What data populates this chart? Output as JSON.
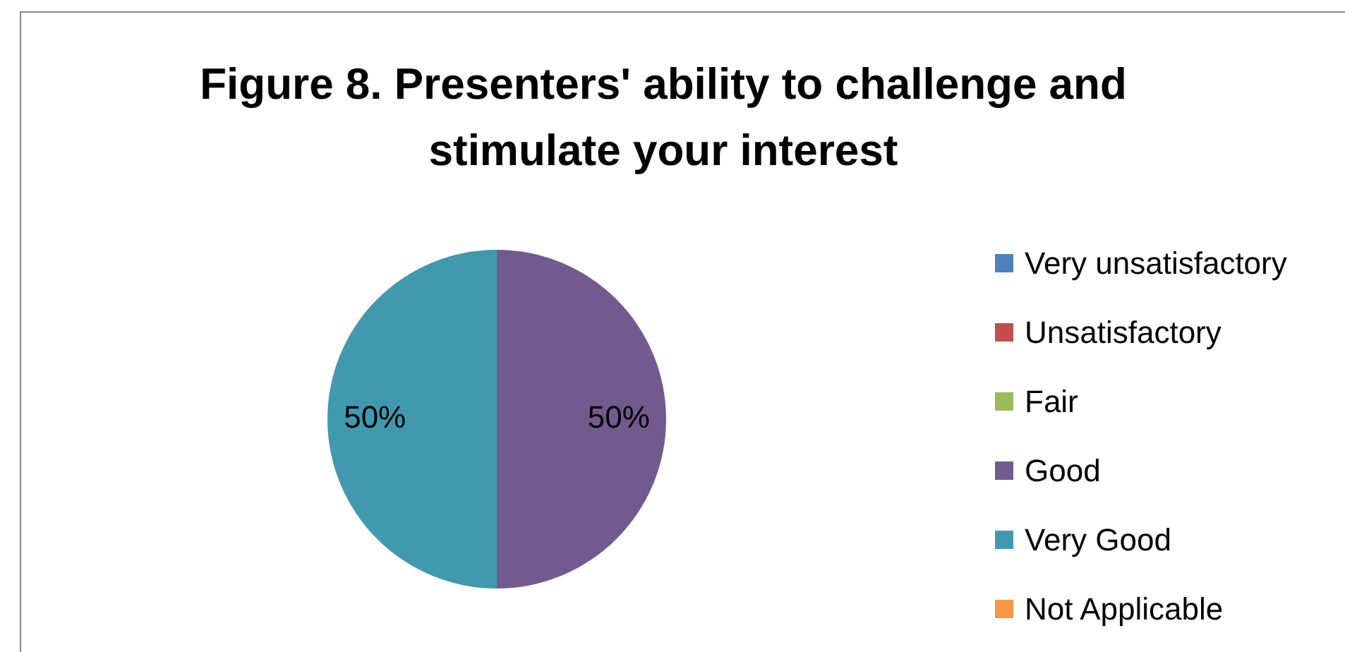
{
  "chart_data": {
    "type": "pie",
    "title": "Figure 8.  Presenters' ability to challenge and stimulate your interest",
    "categories": [
      "Very unsatisfactory",
      "Unsatisfactory",
      "Fair",
      "Good",
      "Very Good",
      "Not Applicable"
    ],
    "values": [
      0,
      0,
      0,
      50,
      50,
      0
    ],
    "colors": [
      "#4f81bd",
      "#c0504d",
      "#9bbb59",
      "#725a8f",
      "#4199b0",
      "#f79646"
    ],
    "value_labels": [
      null,
      null,
      null,
      "50%",
      "50%",
      null
    ],
    "legend": "right"
  }
}
